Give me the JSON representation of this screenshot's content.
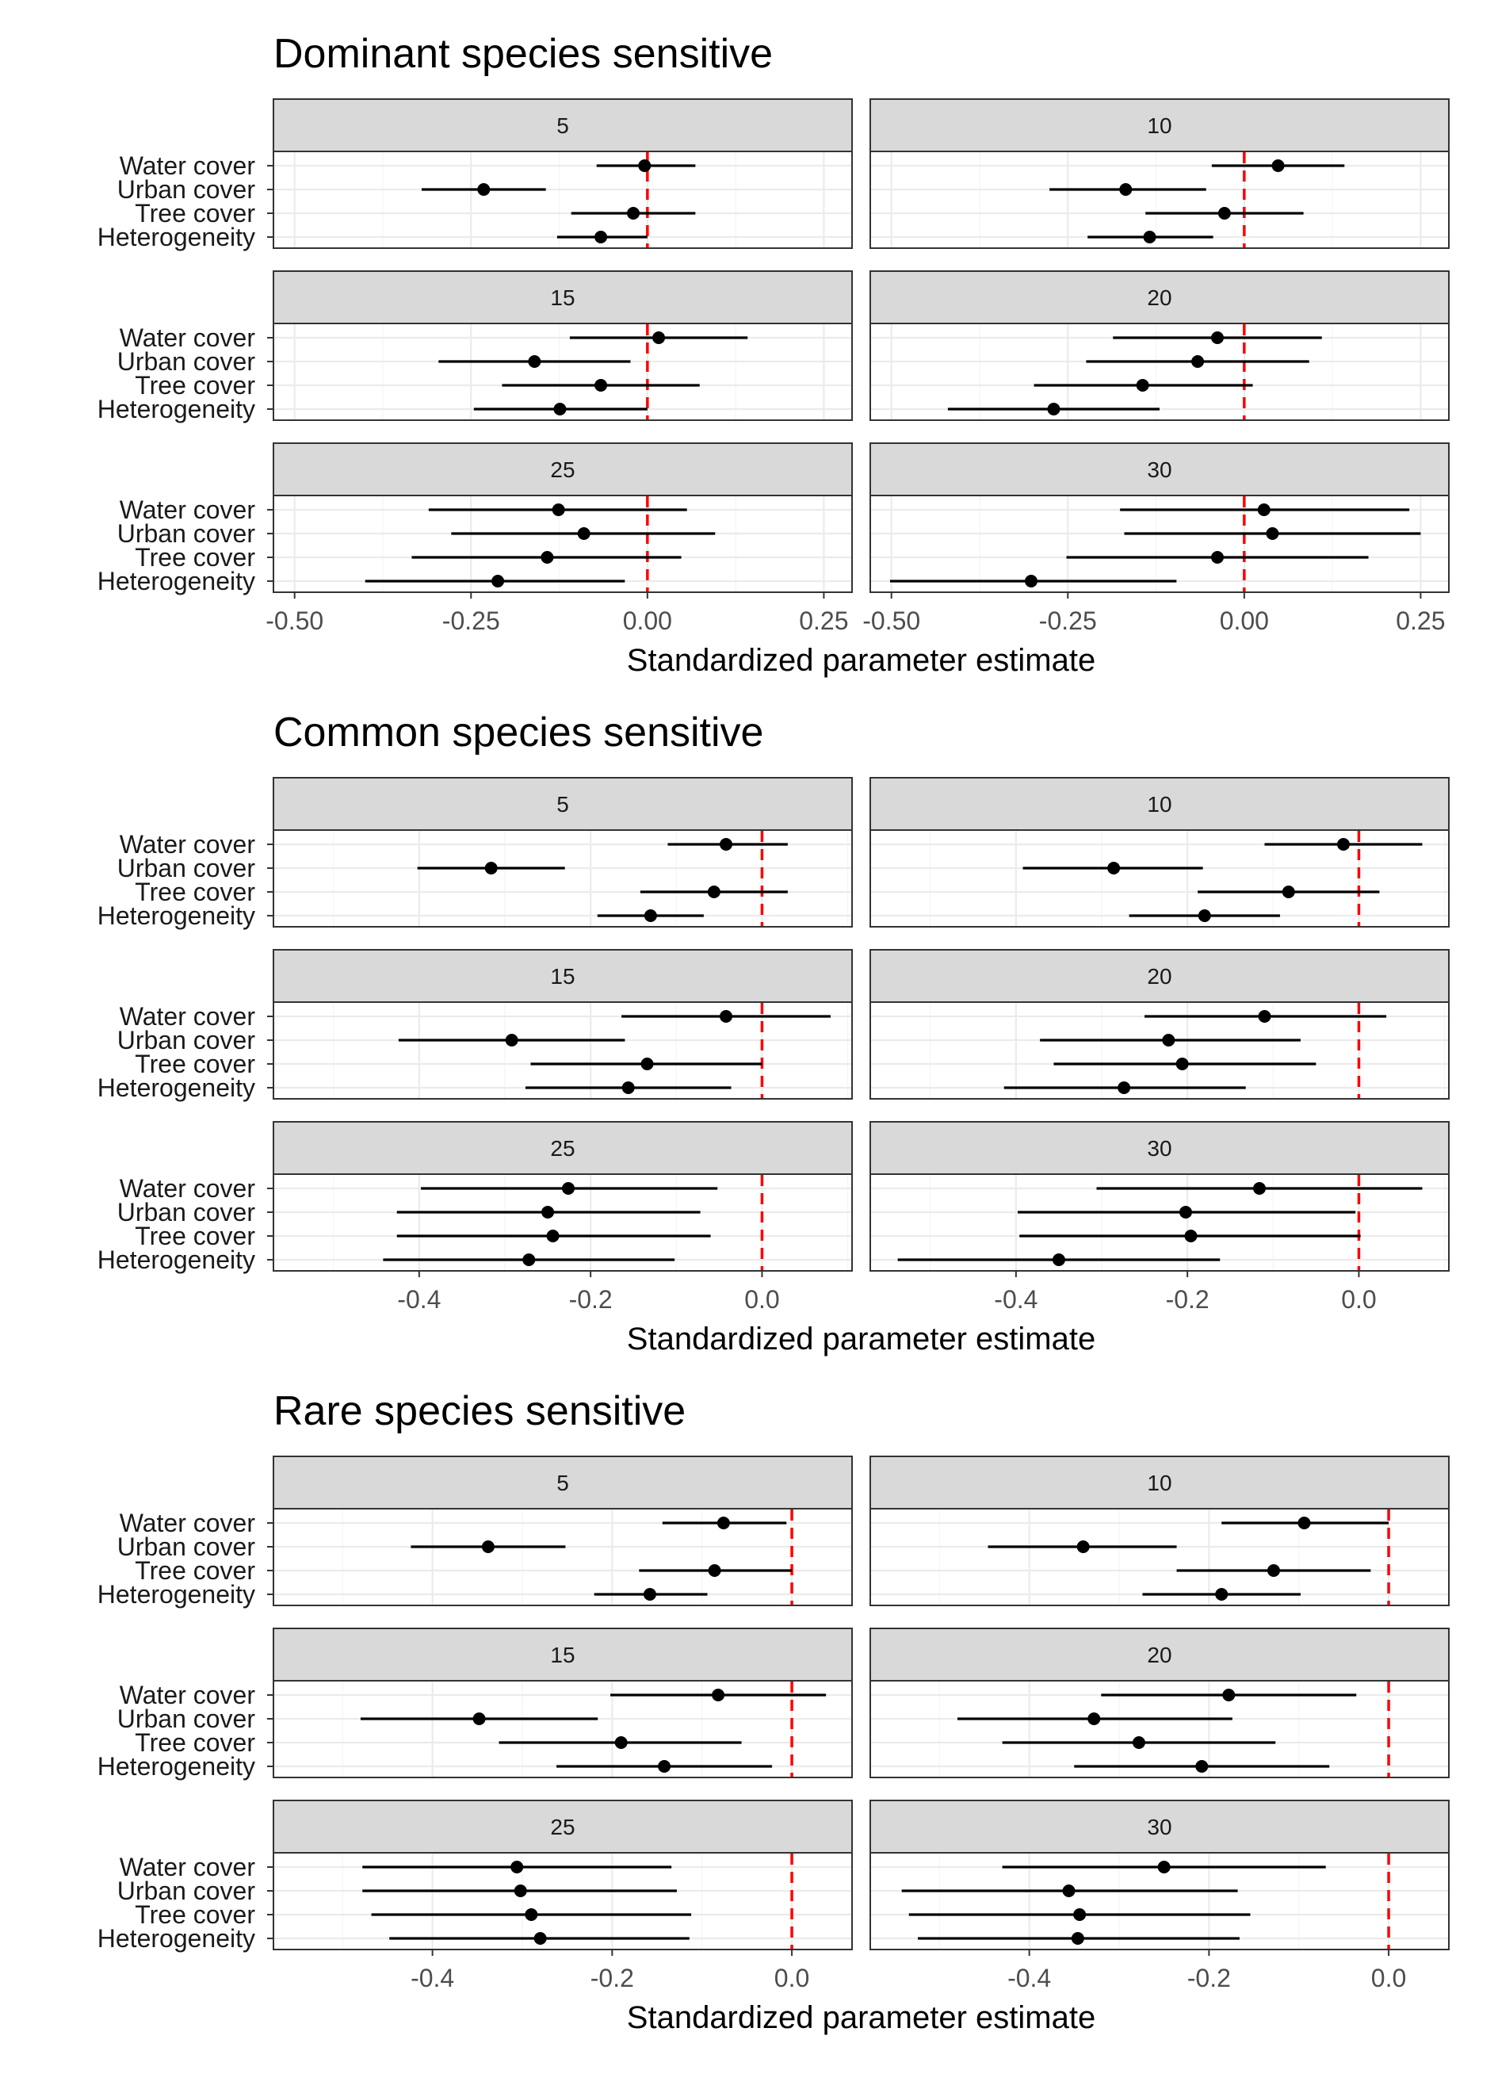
{
  "figure": {
    "x_axis_title": "Standardized parameter estimate",
    "colors": {
      "strip_fill": "#d9d9d9",
      "reference_line": "#ff0000",
      "point": "#000000",
      "border": "#333333"
    }
  },
  "chart_data": [
    {
      "type": "scatter",
      "subtype": "forest-plot-faceted",
      "title": "Dominant species sensitive",
      "xlabel": "Standardized parameter estimate",
      "categories": [
        "Water cover",
        "Urban cover",
        "Tree cover",
        "Heterogeneity"
      ],
      "reference_line": 0,
      "columns": [
        {
          "xlim": [
            -0.53,
            0.29
          ],
          "ticks": [
            -0.5,
            -0.25,
            0.0,
            0.25
          ],
          "tick_labels": [
            "-0.50",
            "-0.25",
            "0.00",
            "0.25"
          ]
        },
        {
          "xlim": [
            -0.53,
            0.29
          ],
          "ticks": [
            -0.5,
            -0.25,
            0.0,
            0.25
          ],
          "tick_labels": [
            "-0.50",
            "-0.25",
            "0.00",
            "0.25"
          ]
        }
      ],
      "facets": [
        {
          "label": "5",
          "column": 0,
          "estimates": [
            {
              "term": "Water cover",
              "est": -0.004,
              "lo": -0.072,
              "hi": 0.068
            },
            {
              "term": "Urban cover",
              "est": -0.232,
              "lo": -0.32,
              "hi": -0.144
            },
            {
              "term": "Tree cover",
              "est": -0.02,
              "lo": -0.108,
              "hi": 0.068
            },
            {
              "term": "Heterogeneity",
              "est": -0.066,
              "lo": -0.128,
              "hi": 0.0
            }
          ]
        },
        {
          "label": "10",
          "column": 1,
          "estimates": [
            {
              "term": "Water cover",
              "est": 0.048,
              "lo": -0.046,
              "hi": 0.142
            },
            {
              "term": "Urban cover",
              "est": -0.168,
              "lo": -0.276,
              "hi": -0.054
            },
            {
              "term": "Tree cover",
              "est": -0.028,
              "lo": -0.14,
              "hi": 0.084
            },
            {
              "term": "Heterogeneity",
              "est": -0.134,
              "lo": -0.222,
              "hi": -0.044
            }
          ]
        },
        {
          "label": "15",
          "column": 0,
          "estimates": [
            {
              "term": "Water cover",
              "est": 0.016,
              "lo": -0.11,
              "hi": 0.142
            },
            {
              "term": "Urban cover",
              "est": -0.16,
              "lo": -0.296,
              "hi": -0.024
            },
            {
              "term": "Tree cover",
              "est": -0.066,
              "lo": -0.206,
              "hi": 0.074
            },
            {
              "term": "Heterogeneity",
              "est": -0.124,
              "lo": -0.246,
              "hi": 0.0
            }
          ]
        },
        {
          "label": "20",
          "column": 1,
          "estimates": [
            {
              "term": "Water cover",
              "est": -0.038,
              "lo": -0.186,
              "hi": 0.11
            },
            {
              "term": "Urban cover",
              "est": -0.066,
              "lo": -0.224,
              "hi": 0.092
            },
            {
              "term": "Tree cover",
              "est": -0.144,
              "lo": -0.298,
              "hi": 0.012
            },
            {
              "term": "Heterogeneity",
              "est": -0.27,
              "lo": -0.42,
              "hi": -0.12
            }
          ]
        },
        {
          "label": "25",
          "column": 0,
          "estimates": [
            {
              "term": "Water cover",
              "est": -0.126,
              "lo": -0.31,
              "hi": 0.056
            },
            {
              "term": "Urban cover",
              "est": -0.09,
              "lo": -0.278,
              "hi": 0.096
            },
            {
              "term": "Tree cover",
              "est": -0.142,
              "lo": -0.334,
              "hi": 0.048
            },
            {
              "term": "Heterogeneity",
              "est": -0.212,
              "lo": -0.4,
              "hi": -0.032
            }
          ]
        },
        {
          "label": "30",
          "column": 1,
          "estimates": [
            {
              "term": "Water cover",
              "est": 0.028,
              "lo": -0.176,
              "hi": 0.234
            },
            {
              "term": "Urban cover",
              "est": 0.04,
              "lo": -0.17,
              "hi": 0.25
            },
            {
              "term": "Tree cover",
              "est": -0.038,
              "lo": -0.252,
              "hi": 0.176
            },
            {
              "term": "Heterogeneity",
              "est": -0.302,
              "lo": -0.502,
              "hi": -0.096
            }
          ]
        }
      ]
    },
    {
      "type": "scatter",
      "subtype": "forest-plot-faceted",
      "title": "Common species sensitive",
      "xlabel": "Standardized parameter estimate",
      "categories": [
        "Water cover",
        "Urban cover",
        "Tree cover",
        "Heterogeneity"
      ],
      "reference_line": 0,
      "columns": [
        {
          "xlim": [
            -0.57,
            0.105
          ],
          "ticks": [
            -0.4,
            -0.2,
            0.0
          ],
          "tick_labels": [
            "-0.4",
            "-0.2",
            "0.0"
          ]
        },
        {
          "xlim": [
            -0.57,
            0.105
          ],
          "ticks": [
            -0.4,
            -0.2,
            0.0
          ],
          "tick_labels": [
            "-0.4",
            "-0.2",
            "0.0"
          ]
        }
      ],
      "facets": [
        {
          "label": "5",
          "column": 0,
          "estimates": [
            {
              "term": "Water cover",
              "est": -0.042,
              "lo": -0.11,
              "hi": 0.03
            },
            {
              "term": "Urban cover",
              "est": -0.316,
              "lo": -0.402,
              "hi": -0.23
            },
            {
              "term": "Tree cover",
              "est": -0.056,
              "lo": -0.142,
              "hi": 0.03
            },
            {
              "term": "Heterogeneity",
              "est": -0.13,
              "lo": -0.192,
              "hi": -0.068
            }
          ]
        },
        {
          "label": "10",
          "column": 1,
          "estimates": [
            {
              "term": "Water cover",
              "est": -0.018,
              "lo": -0.11,
              "hi": 0.074
            },
            {
              "term": "Urban cover",
              "est": -0.286,
              "lo": -0.392,
              "hi": -0.182
            },
            {
              "term": "Tree cover",
              "est": -0.082,
              "lo": -0.188,
              "hi": 0.024
            },
            {
              "term": "Heterogeneity",
              "est": -0.18,
              "lo": -0.268,
              "hi": -0.092
            }
          ]
        },
        {
          "label": "15",
          "column": 0,
          "estimates": [
            {
              "term": "Water cover",
              "est": -0.042,
              "lo": -0.164,
              "hi": 0.08
            },
            {
              "term": "Urban cover",
              "est": -0.292,
              "lo": -0.424,
              "hi": -0.16
            },
            {
              "term": "Tree cover",
              "est": -0.134,
              "lo": -0.27,
              "hi": 0.0
            },
            {
              "term": "Heterogeneity",
              "est": -0.156,
              "lo": -0.276,
              "hi": -0.036
            }
          ]
        },
        {
          "label": "20",
          "column": 1,
          "estimates": [
            {
              "term": "Water cover",
              "est": -0.11,
              "lo": -0.25,
              "hi": 0.032
            },
            {
              "term": "Urban cover",
              "est": -0.222,
              "lo": -0.372,
              "hi": -0.068
            },
            {
              "term": "Tree cover",
              "est": -0.206,
              "lo": -0.356,
              "hi": -0.05
            },
            {
              "term": "Heterogeneity",
              "est": -0.274,
              "lo": -0.414,
              "hi": -0.132
            }
          ]
        },
        {
          "label": "25",
          "column": 0,
          "estimates": [
            {
              "term": "Water cover",
              "est": -0.226,
              "lo": -0.398,
              "hi": -0.052
            },
            {
              "term": "Urban cover",
              "est": -0.25,
              "lo": -0.426,
              "hi": -0.072
            },
            {
              "term": "Tree cover",
              "est": -0.244,
              "lo": -0.426,
              "hi": -0.06
            },
            {
              "term": "Heterogeneity",
              "est": -0.272,
              "lo": -0.442,
              "hi": -0.102
            }
          ]
        },
        {
          "label": "30",
          "column": 1,
          "estimates": [
            {
              "term": "Water cover",
              "est": -0.116,
              "lo": -0.306,
              "hi": 0.074
            },
            {
              "term": "Urban cover",
              "est": -0.202,
              "lo": -0.398,
              "hi": -0.004
            },
            {
              "term": "Tree cover",
              "est": -0.196,
              "lo": -0.396,
              "hi": 0.002
            },
            {
              "term": "Heterogeneity",
              "est": -0.35,
              "lo": -0.538,
              "hi": -0.162
            }
          ]
        }
      ]
    },
    {
      "type": "scatter",
      "subtype": "forest-plot-faceted",
      "title": "Rare species sensitive",
      "xlabel": "Standardized parameter estimate",
      "categories": [
        "Water cover",
        "Urban cover",
        "Tree cover",
        "Heterogeneity"
      ],
      "reference_line": 0,
      "columns": [
        {
          "xlim": [
            -0.577,
            0.067
          ],
          "ticks": [
            -0.4,
            -0.2,
            0.0
          ],
          "tick_labels": [
            "-0.4",
            "-0.2",
            "0.0"
          ]
        },
        {
          "xlim": [
            -0.577,
            0.067
          ],
          "ticks": [
            -0.4,
            -0.2,
            0.0
          ],
          "tick_labels": [
            "-0.4",
            "-0.2",
            "0.0"
          ]
        }
      ],
      "facets": [
        {
          "label": "5",
          "column": 0,
          "estimates": [
            {
              "term": "Water cover",
              "est": -0.076,
              "lo": -0.144,
              "hi": -0.006
            },
            {
              "term": "Urban cover",
              "est": -0.338,
              "lo": -0.424,
              "hi": -0.252
            },
            {
              "term": "Tree cover",
              "est": -0.086,
              "lo": -0.17,
              "hi": 0.0
            },
            {
              "term": "Heterogeneity",
              "est": -0.158,
              "lo": -0.22,
              "hi": -0.094
            }
          ]
        },
        {
          "label": "10",
          "column": 1,
          "estimates": [
            {
              "term": "Water cover",
              "est": -0.094,
              "lo": -0.186,
              "hi": 0.0
            },
            {
              "term": "Urban cover",
              "est": -0.34,
              "lo": -0.446,
              "hi": -0.236
            },
            {
              "term": "Tree cover",
              "est": -0.128,
              "lo": -0.236,
              "hi": -0.02
            },
            {
              "term": "Heterogeneity",
              "est": -0.186,
              "lo": -0.274,
              "hi": -0.098
            }
          ]
        },
        {
          "label": "15",
          "column": 0,
          "estimates": [
            {
              "term": "Water cover",
              "est": -0.082,
              "lo": -0.202,
              "hi": 0.038
            },
            {
              "term": "Urban cover",
              "est": -0.348,
              "lo": -0.48,
              "hi": -0.216
            },
            {
              "term": "Tree cover",
              "est": -0.19,
              "lo": -0.326,
              "hi": -0.056
            },
            {
              "term": "Heterogeneity",
              "est": -0.142,
              "lo": -0.262,
              "hi": -0.022
            }
          ]
        },
        {
          "label": "20",
          "column": 1,
          "estimates": [
            {
              "term": "Water cover",
              "est": -0.178,
              "lo": -0.32,
              "hi": -0.036
            },
            {
              "term": "Urban cover",
              "est": -0.328,
              "lo": -0.48,
              "hi": -0.174
            },
            {
              "term": "Tree cover",
              "est": -0.278,
              "lo": -0.43,
              "hi": -0.126
            },
            {
              "term": "Heterogeneity",
              "est": -0.208,
              "lo": -0.35,
              "hi": -0.066
            }
          ]
        },
        {
          "label": "25",
          "column": 0,
          "estimates": [
            {
              "term": "Water cover",
              "est": -0.306,
              "lo": -0.478,
              "hi": -0.134
            },
            {
              "term": "Urban cover",
              "est": -0.302,
              "lo": -0.478,
              "hi": -0.128
            },
            {
              "term": "Tree cover",
              "est": -0.29,
              "lo": -0.468,
              "hi": -0.112
            },
            {
              "term": "Heterogeneity",
              "est": -0.28,
              "lo": -0.448,
              "hi": -0.114
            }
          ]
        },
        {
          "label": "30",
          "column": 1,
          "estimates": [
            {
              "term": "Water cover",
              "est": -0.25,
              "lo": -0.43,
              "hi": -0.07
            },
            {
              "term": "Urban cover",
              "est": -0.356,
              "lo": -0.542,
              "hi": -0.168
            },
            {
              "term": "Tree cover",
              "est": -0.344,
              "lo": -0.534,
              "hi": -0.154
            },
            {
              "term": "Heterogeneity",
              "est": -0.346,
              "lo": -0.524,
              "hi": -0.166
            }
          ]
        }
      ]
    }
  ]
}
